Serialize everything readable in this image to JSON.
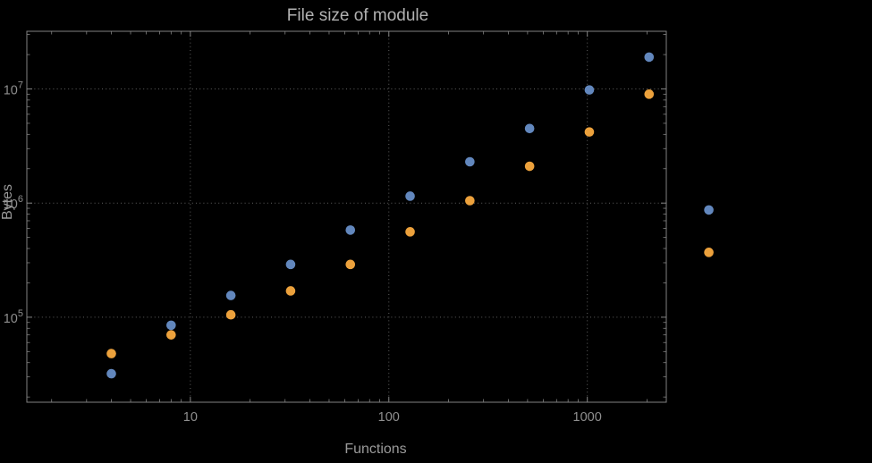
{
  "chart_data": {
    "type": "scatter",
    "title": "File size of module",
    "xlabel": "Functions",
    "ylabel": "Bytes",
    "x_scale": "log",
    "y_scale": "log",
    "grid": "dotted",
    "legend": "none",
    "xlim": [
      1.5,
      2500
    ],
    "ylim": [
      18000,
      32000000
    ],
    "x_ticks": [
      10,
      100,
      1000
    ],
    "x_tick_labels": [
      "10",
      "100",
      "1000"
    ],
    "y_ticks": [
      100000,
      1000000,
      10000000
    ],
    "y_tick_labels": [
      {
        "base": "10",
        "exp": "5"
      },
      {
        "base": "10",
        "exp": "6"
      },
      {
        "base": "10",
        "exp": "7"
      }
    ],
    "x": [
      4,
      8,
      16,
      32,
      64,
      128,
      256,
      512,
      1024,
      2048,
      4096
    ],
    "series": [
      {
        "name": "blue",
        "color": "#6287bd",
        "values": [
          32000,
          85000,
          155000,
          290000,
          580000,
          1150000,
          2300000,
          4500000,
          9800000,
          19000000,
          870000
        ]
      },
      {
        "name": "orange",
        "color": "#eca13c",
        "values": [
          48000,
          70000,
          105000,
          170000,
          290000,
          560000,
          1050000,
          2100000,
          4200000,
          9000000,
          370000
        ]
      }
    ]
  },
  "style": {
    "background": "#000000",
    "frame_color": "#828282",
    "grid_color": "#606060",
    "title_color": "#b2b2b2",
    "label_color": "#9a9a9a",
    "tick_label_color": "#8f8f8f"
  }
}
